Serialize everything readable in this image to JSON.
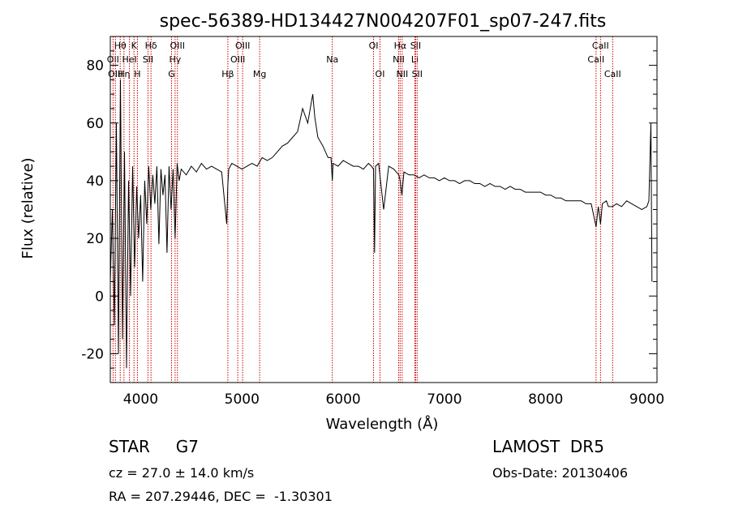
{
  "chart_data": {
    "type": "line",
    "title": "spec-56389-HD134427N004207F01_sp07-247.fits",
    "xlabel": "Wavelength (Å)",
    "ylabel": "Flux (relative)",
    "xlim": [
      3700,
      9100
    ],
    "ylim": [
      -30,
      90
    ],
    "xticks": [
      4000,
      5000,
      6000,
      7000,
      8000,
      9000
    ],
    "yticks": [
      -20,
      0,
      20,
      40,
      60,
      80
    ],
    "grid": false,
    "line_color": "#000000",
    "marker_color": "#cc0000",
    "series": [
      {
        "x": [
          3700,
          3720,
          3740,
          3760,
          3780,
          3800,
          3820,
          3840,
          3860,
          3880,
          3900,
          3920,
          3940,
          3960,
          3980,
          4000,
          4020,
          4040,
          4060,
          4080,
          4100,
          4120,
          4140,
          4160,
          4180,
          4200,
          4220,
          4240,
          4260,
          4280,
          4300,
          4320,
          4340,
          4360,
          4380,
          4400,
          4450,
          4500,
          4550,
          4600,
          4650,
          4700,
          4750,
          4800,
          4850,
          4860,
          4870,
          4900,
          4950,
          5000,
          5050,
          5100,
          5150,
          5200,
          5250,
          5300,
          5350,
          5400,
          5450,
          5500,
          5550,
          5600,
          5650,
          5700,
          5720,
          5750,
          5800,
          5850,
          5880,
          5893,
          5900,
          5950,
          6000,
          6050,
          6100,
          6150,
          6200,
          6250,
          6280,
          6300,
          6310,
          6320,
          6350,
          6400,
          6450,
          6500,
          6550,
          6563,
          6580,
          6600,
          6650,
          6700,
          6750,
          6800,
          6850,
          6900,
          6950,
          7000,
          7050,
          7100,
          7150,
          7200,
          7250,
          7300,
          7350,
          7400,
          7450,
          7500,
          7550,
          7600,
          7650,
          7700,
          7750,
          7800,
          7850,
          7900,
          7950,
          8000,
          8050,
          8100,
          8150,
          8200,
          8250,
          8300,
          8350,
          8400,
          8450,
          8498,
          8520,
          8542,
          8560,
          8600,
          8620,
          8662,
          8700,
          8750,
          8800,
          8850,
          8900,
          8950,
          9000,
          9020,
          9040,
          9050
        ],
        "y": [
          5,
          30,
          -10,
          60,
          -20,
          75,
          -15,
          50,
          -25,
          40,
          0,
          45,
          10,
          38,
          20,
          35,
          5,
          40,
          25,
          45,
          30,
          42,
          32,
          45,
          18,
          44,
          35,
          42,
          15,
          45,
          30,
          44,
          20,
          46,
          40,
          44,
          42,
          45,
          43,
          46,
          44,
          45,
          44,
          43,
          25,
          38,
          44,
          46,
          45,
          44,
          45,
          46,
          45,
          48,
          47,
          48,
          50,
          52,
          53,
          55,
          57,
          65,
          60,
          70,
          62,
          55,
          52,
          48,
          48,
          40,
          46,
          45,
          47,
          46,
          45,
          45,
          44,
          46,
          45,
          44,
          15,
          45,
          46,
          30,
          45,
          44,
          42,
          40,
          35,
          43,
          42,
          42,
          41,
          42,
          41,
          41,
          40,
          41,
          40,
          40,
          39,
          40,
          40,
          39,
          39,
          38,
          39,
          38,
          38,
          37,
          38,
          37,
          37,
          36,
          36,
          36,
          36,
          35,
          35,
          34,
          34,
          33,
          33,
          33,
          33,
          32,
          32,
          24,
          31,
          25,
          32,
          33,
          31,
          31,
          32,
          31,
          33,
          32,
          31,
          30,
          31,
          33,
          60,
          5
        ]
      }
    ],
    "lines": [
      {
        "name": "Hθ",
        "wave": 3798,
        "row": 0
      },
      {
        "name": "OII",
        "wave": 3727,
        "row": 1
      },
      {
        "name": "OIII",
        "wave": 3750,
        "row": 2
      },
      {
        "name": "Hη",
        "wave": 3835,
        "row": 2
      },
      {
        "name": "HeI",
        "wave": 3889,
        "row": 1
      },
      {
        "name": "K",
        "wave": 3934,
        "row": 0
      },
      {
        "name": "H",
        "wave": 3968,
        "row": 2
      },
      {
        "name": "SII",
        "wave": 4072,
        "row": 1
      },
      {
        "name": "Hδ",
        "wave": 4102,
        "row": 0
      },
      {
        "name": "Hγ",
        "wave": 4340,
        "row": 1
      },
      {
        "name": "G",
        "wave": 4305,
        "row": 2
      },
      {
        "name": "OIII",
        "wave": 4363,
        "row": 0
      },
      {
        "name": "Hβ",
        "wave": 4861,
        "row": 2
      },
      {
        "name": "OIII",
        "wave": 4959,
        "row": 1
      },
      {
        "name": "OIII",
        "wave": 5007,
        "row": 0
      },
      {
        "name": "Mg",
        "wave": 5175,
        "row": 2
      },
      {
        "name": "Na",
        "wave": 5893,
        "row": 1
      },
      {
        "name": "OI",
        "wave": 6300,
        "row": 0
      },
      {
        "name": "OI",
        "wave": 6364,
        "row": 2
      },
      {
        "name": "NII",
        "wave": 6548,
        "row": 1
      },
      {
        "name": "Hα",
        "wave": 6563,
        "row": 0
      },
      {
        "name": "NII",
        "wave": 6583,
        "row": 2
      },
      {
        "name": "Li",
        "wave": 6708,
        "row": 1
      },
      {
        "name": "SII",
        "wave": 6716,
        "row": 0
      },
      {
        "name": "SII",
        "wave": 6731,
        "row": 2
      },
      {
        "name": "CaII",
        "wave": 8498,
        "row": 1
      },
      {
        "name": "CaII",
        "wave": 8542,
        "row": 0
      },
      {
        "name": "CaII",
        "wave": 8662,
        "row": 2
      }
    ]
  },
  "info": {
    "object_class": "STAR     G7",
    "survey": "LAMOST  DR5",
    "redshift": "cz = 27.0 ± 14.0 km/s",
    "obs_date": "Obs-Date: 20130406",
    "coordinates": "RA = 207.29446, DEC =  -1.30301"
  }
}
